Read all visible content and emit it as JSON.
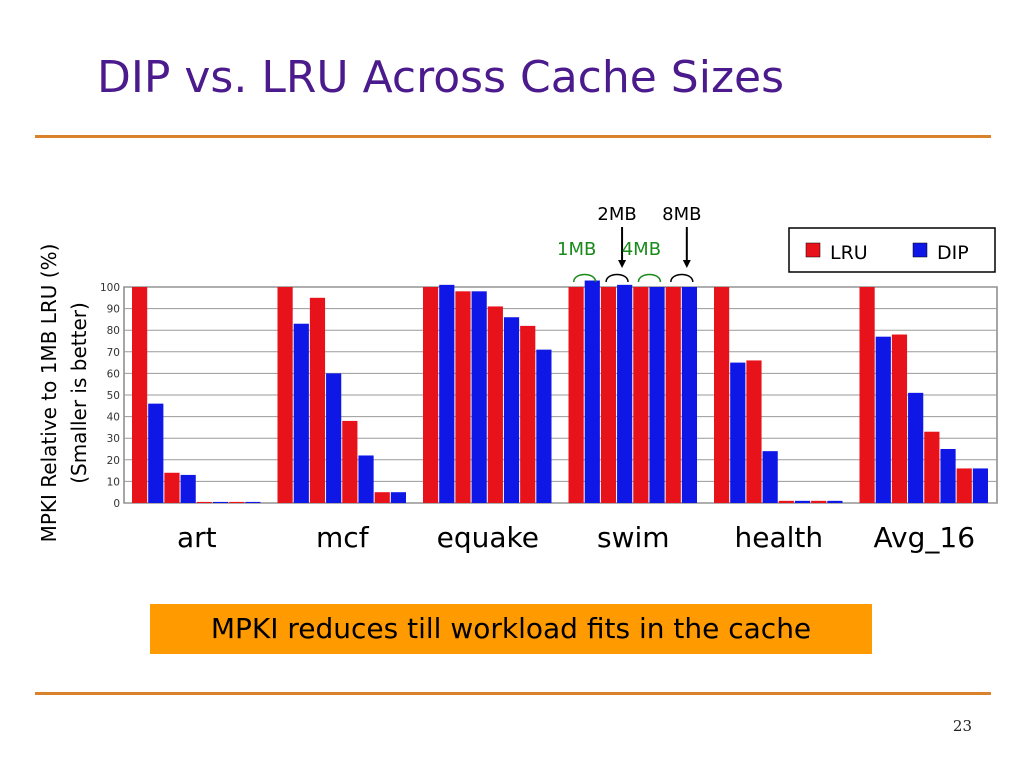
{
  "slide": {
    "title": "DIP vs. LRU Across Cache Sizes",
    "callout": "MPKI reduces till workload fits in the cache",
    "page_number": "23",
    "accent_color": "#d9822b",
    "title_color": "#4b1a8c",
    "callout_color": "#ff9a00"
  },
  "chart_data": {
    "type": "bar",
    "ylabel": "MPKI Relative to 1MB LRU (%)",
    "ylabel2": "(Smaller is better)",
    "ylim": [
      0,
      100
    ],
    "yticks": [
      "0",
      "10",
      "20",
      "30",
      "40",
      "50",
      "60",
      "70",
      "80",
      "90",
      "100"
    ],
    "grid": true,
    "legend": "top-right",
    "groups": [
      "art",
      "mcf",
      "equake",
      "swim",
      "health",
      "Avg_16"
    ],
    "cache_sizes": [
      "1MB",
      "2MB",
      "4MB",
      "8MB"
    ],
    "series": [
      {
        "name": "LRU",
        "color": "#e8121a",
        "values": [
          [
            100,
            14,
            0.5,
            0.5
          ],
          [
            100,
            95,
            38,
            5
          ],
          [
            100,
            98,
            91,
            82
          ],
          [
            100,
            100,
            100,
            100
          ],
          [
            100,
            66,
            1,
            1
          ],
          [
            100,
            78,
            33,
            16
          ]
        ]
      },
      {
        "name": "DIP",
        "color": "#0f17e6",
        "values": [
          [
            46,
            13,
            0.5,
            0.5
          ],
          [
            83,
            60,
            22,
            5
          ],
          [
            101,
            98,
            86,
            71
          ],
          [
            103,
            101,
            100,
            100
          ],
          [
            65,
            24,
            1,
            1
          ],
          [
            77,
            51,
            25,
            16
          ]
        ]
      }
    ],
    "annotations": [
      {
        "text": "1MB",
        "color": "#1a8a1a"
      },
      {
        "text": "2MB",
        "color": "#000000"
      },
      {
        "text": "4MB",
        "color": "#1a8a1a"
      },
      {
        "text": "8MB",
        "color": "#000000"
      }
    ]
  }
}
